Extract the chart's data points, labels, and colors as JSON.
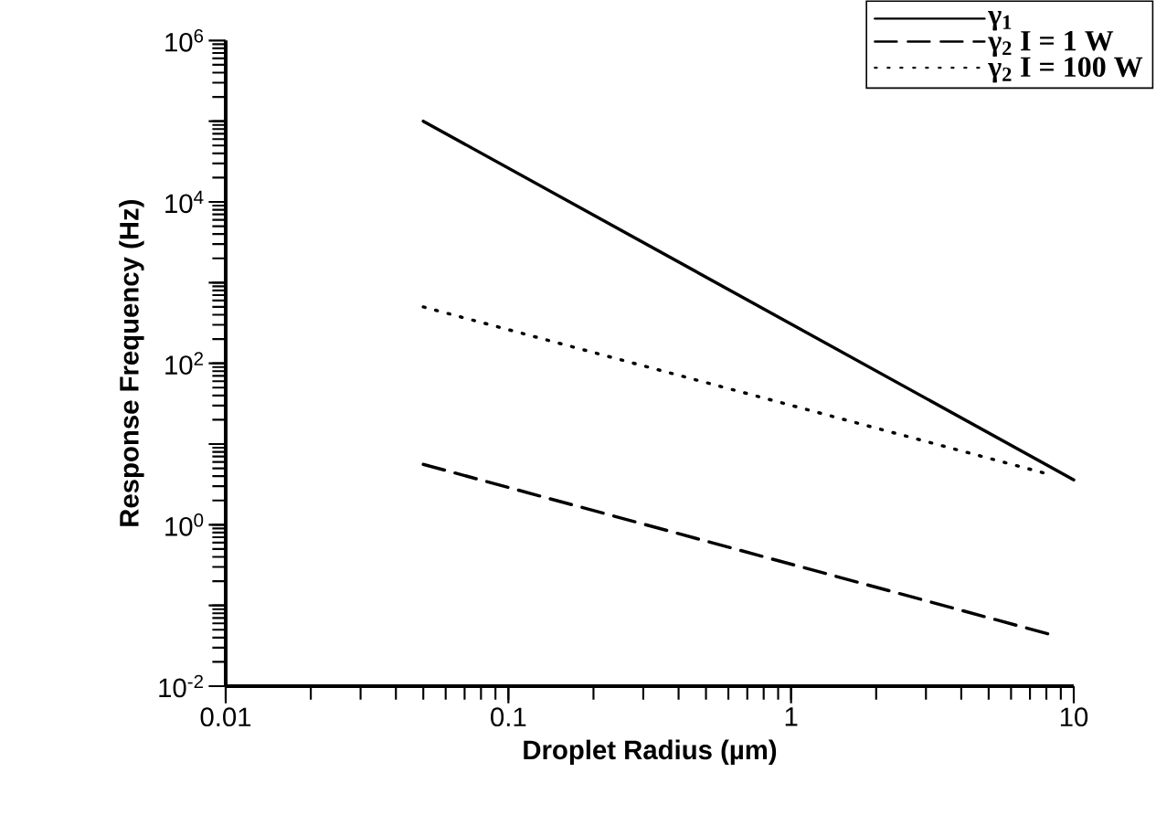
{
  "chart_data": {
    "type": "line",
    "xlabel": "Droplet Radius (µm)",
    "ylabel": "Response Frequency (Hz)",
    "log": "xy",
    "xlim": [
      0.01,
      10
    ],
    "xticks": [
      0.01,
      0.1,
      1,
      10
    ],
    "ylim": [
      0.01,
      1000000
    ],
    "yticks": [
      {
        "value": 0.01,
        "label": "10$^{-2}$"
      },
      {
        "value": 0.1,
        "label": null
      },
      {
        "value": 1,
        "label": "10$^{0}$"
      },
      {
        "value": 10,
        "label": null
      },
      {
        "value": 100,
        "label": "10$^{2}$"
      },
      {
        "value": 1000,
        "label": null
      },
      {
        "value": 10000,
        "label": "10$^{4}$"
      },
      {
        "value": 100000,
        "label": null
      },
      {
        "value": 1000000,
        "label": "10$^{6}$"
      }
    ],
    "grid": false,
    "legend": "top right",
    "marker": "none",
    "series": [
      {
        "name": "γ$_{1}$",
        "color": "#000000",
        "line_style": "solid",
        "x": [
          0.05,
          10
        ],
        "values": [
          100000,
          3.6
        ]
      },
      {
        "name": "γ$_{2}$  I = 1 W",
        "color": "#000000",
        "line_style": "dashed",
        "x": [
          0.05,
          8.2
        ],
        "values": [
          5.6,
          0.044
        ]
      },
      {
        "name": "γ$_{2}$  I = 100 W",
        "color": "#000000",
        "line_style": "dotted",
        "x": [
          0.05,
          8.2
        ],
        "values": [
          500,
          4.2
        ]
      }
    ]
  }
}
